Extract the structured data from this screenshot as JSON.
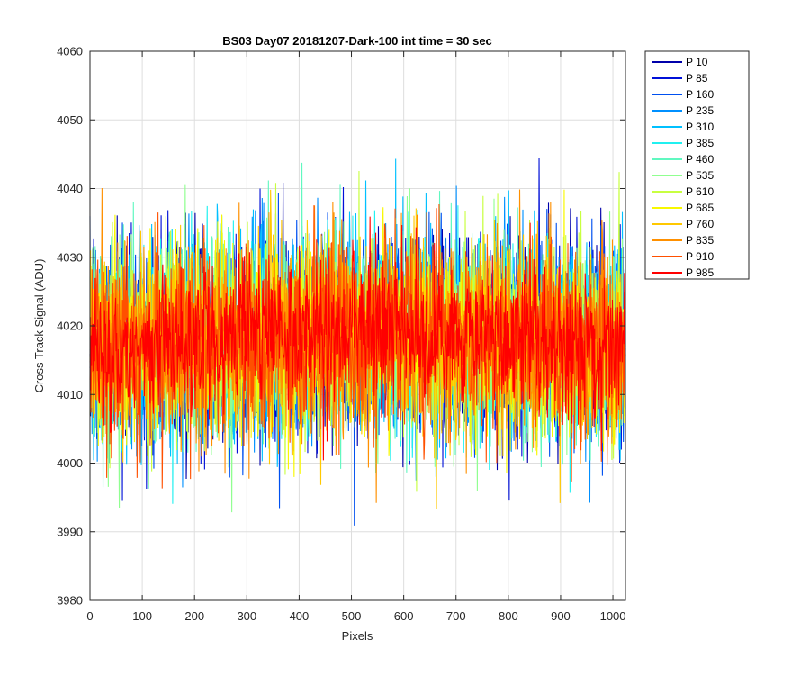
{
  "chart_data": {
    "type": "line",
    "title": "BS03 Day07 20181207-Dark-100 int time = 30 sec",
    "xlabel": "Pixels",
    "ylabel": "Cross Track Signal (ADU)",
    "xlim": [
      0,
      1024
    ],
    "ylim": [
      3980,
      4060
    ],
    "xticks": [
      0,
      100,
      200,
      300,
      400,
      500,
      600,
      700,
      800,
      900,
      1000
    ],
    "yticks": [
      3980,
      3990,
      4000,
      4010,
      4020,
      4030,
      4040,
      4050,
      4060
    ],
    "grid": true,
    "legend_position": "outside-top-right",
    "noise": {
      "mean": 4018,
      "std": 7,
      "n_points": 1024
    },
    "series": [
      {
        "name": "P 10",
        "color": "#0000aa"
      },
      {
        "name": "P 85",
        "color": "#0010d8"
      },
      {
        "name": "P 160",
        "color": "#0050f0"
      },
      {
        "name": "P 235",
        "color": "#0090ff"
      },
      {
        "name": "P 310",
        "color": "#00c0ff"
      },
      {
        "name": "P 385",
        "color": "#20f0f0"
      },
      {
        "name": "P 460",
        "color": "#60f8c0"
      },
      {
        "name": "P 535",
        "color": "#90ff90"
      },
      {
        "name": "P 610",
        "color": "#c8ff40"
      },
      {
        "name": "P 685",
        "color": "#f8f800"
      },
      {
        "name": "P 760",
        "color": "#ffc800"
      },
      {
        "name": "P 835",
        "color": "#ff9000"
      },
      {
        "name": "P 910",
        "color": "#ff5000"
      },
      {
        "name": "P 985",
        "color": "#ff0000"
      }
    ]
  }
}
